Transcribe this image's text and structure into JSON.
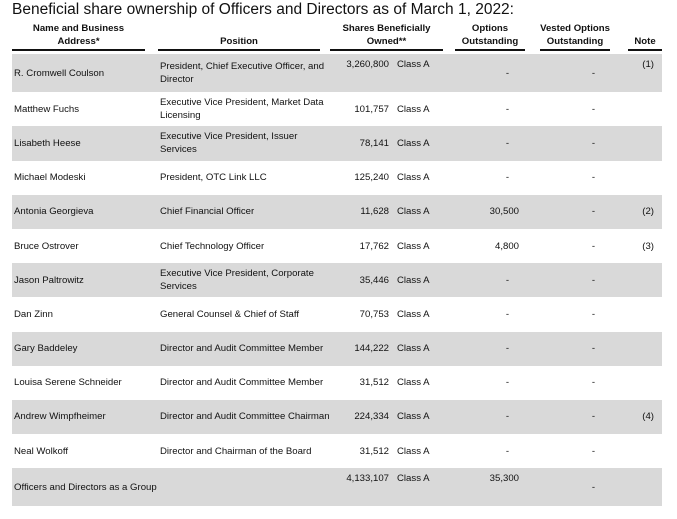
{
  "title": "Beneficial share ownership of Officers and Directors as of March 1, 2022:",
  "headers": {
    "name": "Name and Business Address*",
    "position": "Position",
    "shares": "Shares Beneficially Owned**",
    "options": "Options Outstanding",
    "vested": "Vested Options Outstanding",
    "note": "Note"
  },
  "rows": [
    {
      "name": "R. Cromwell Coulson",
      "position": "President, Chief Executive Officer, and Director",
      "shares": "3,260,800",
      "class": "Class A",
      "options": "-",
      "vested": "-",
      "note": "(1)"
    },
    {
      "name": "Matthew Fuchs",
      "position": "Executive Vice President, Market Data Licensing",
      "shares": "101,757",
      "class": "Class A",
      "options": "-",
      "vested": "-",
      "note": ""
    },
    {
      "name": "Lisabeth Heese",
      "position": "Executive Vice President, Issuer Services",
      "shares": "78,141",
      "class": "Class A",
      "options": "-",
      "vested": "-",
      "note": ""
    },
    {
      "name": "Michael Modeski",
      "position": "President, OTC Link LLC",
      "shares": "125,240",
      "class": "Class A",
      "options": "-",
      "vested": "-",
      "note": ""
    },
    {
      "name": "Antonia Georgieva",
      "position": "Chief Financial Officer",
      "shares": "11,628",
      "class": "Class A",
      "options": "30,500",
      "vested": "-",
      "note": "(2)"
    },
    {
      "name": "Bruce Ostrover",
      "position": "Chief Technology Officer",
      "shares": "17,762",
      "class": "Class A",
      "options": "4,800",
      "vested": "-",
      "note": "(3)"
    },
    {
      "name": "Jason Paltrowitz",
      "position": "Executive Vice President, Corporate Services",
      "shares": "35,446",
      "class": "Class A",
      "options": "-",
      "vested": "-",
      "note": ""
    },
    {
      "name": "Dan Zinn",
      "position": "General Counsel & Chief of Staff",
      "shares": "70,753",
      "class": "Class A",
      "options": "-",
      "vested": "-",
      "note": ""
    },
    {
      "name": "Gary Baddeley",
      "position": "Director and Audit Committee Member",
      "shares": "144,222",
      "class": "Class A",
      "options": "-",
      "vested": "-",
      "note": ""
    },
    {
      "name": "Louisa Serene Schneider",
      "position": "Director and Audit Committee Member",
      "shares": "31,512",
      "class": "Class A",
      "options": "-",
      "vested": "-",
      "note": ""
    },
    {
      "name": "Andrew Wimpfheimer",
      "position": "Director and Audit Committee Chairman",
      "shares": "224,334",
      "class": "Class A",
      "options": "-",
      "vested": "-",
      "note": "(4)"
    },
    {
      "name": "Neal Wolkoff",
      "position": "Director and Chairman of the Board",
      "shares": "31,512",
      "class": "Class A",
      "options": "-",
      "vested": "-",
      "note": ""
    },
    {
      "name": "Officers and Directors as a Group",
      "position": "",
      "shares": "4,133,107",
      "class": "Class A",
      "options": "35,300",
      "vested": "-",
      "note": ""
    }
  ]
}
